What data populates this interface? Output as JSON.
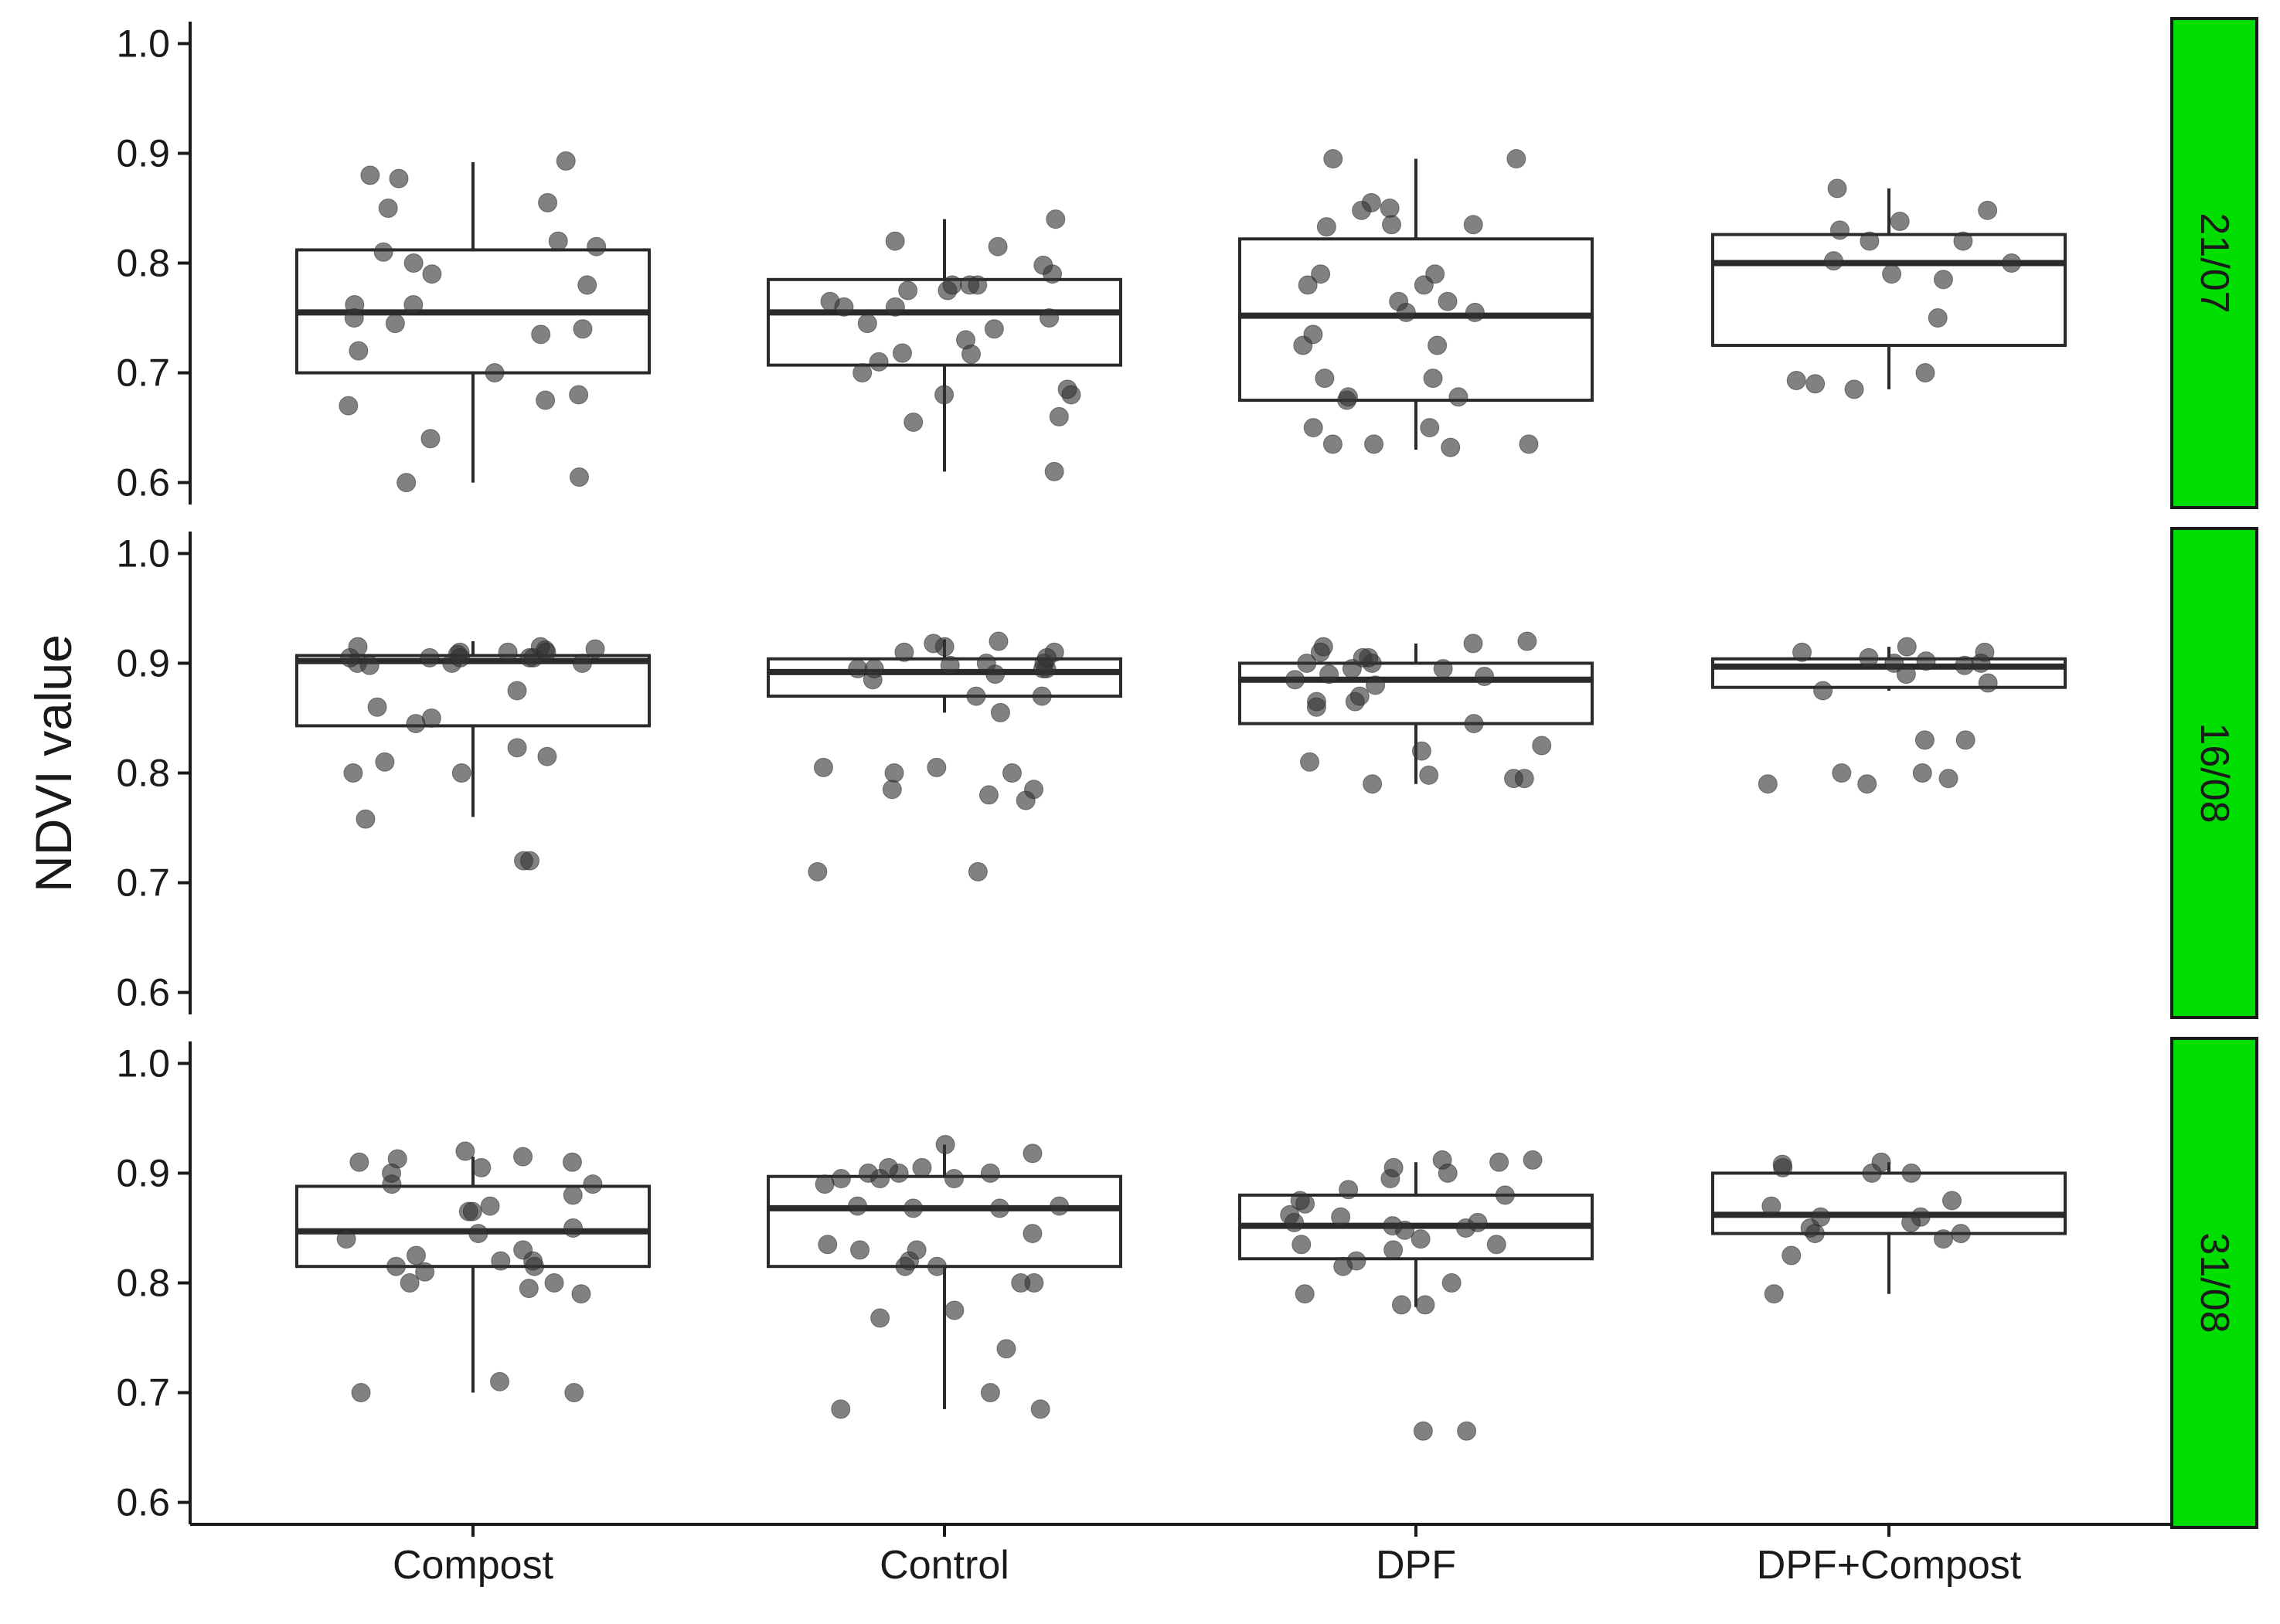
{
  "chart_data": {
    "type": "boxplot",
    "ylabel": "NDVI value",
    "xlabel": "",
    "categories": [
      "Compost",
      "Control",
      "DPF",
      "DPF+Compost"
    ],
    "ylim": [
      0.58,
      1.02
    ],
    "yticks": [
      0.6,
      0.7,
      0.8,
      0.9,
      1.0
    ],
    "ytick_labels": [
      "0.6",
      "0.7",
      "0.8",
      "0.9",
      "1.0"
    ],
    "grid": false,
    "facet_strip_color": "#00dd00",
    "point_color": "#333333",
    "box_fill": "#ffffff",
    "panels": [
      {
        "label": "21/07",
        "boxes": [
          {
            "category": "Compost",
            "whisker_low": 0.6,
            "q1": 0.7,
            "median": 0.755,
            "q3": 0.812,
            "whisker_high": 0.892,
            "points": [
              0.88,
              0.82,
              0.78,
              0.762,
              0.67,
              0.72,
              0.735,
              0.7,
              0.68,
              0.675,
              0.64,
              0.745,
              0.8,
              0.855,
              0.815,
              0.81,
              0.79,
              0.75,
              0.762,
              0.85,
              0.893,
              0.877,
              0.605,
              0.6,
              0.74
            ]
          },
          {
            "category": "Control",
            "whisker_low": 0.61,
            "q1": 0.707,
            "median": 0.755,
            "q3": 0.785,
            "whisker_high": 0.84,
            "points": [
              0.84,
              0.82,
              0.78,
              0.775,
              0.745,
              0.75,
              0.718,
              0.685,
              0.66,
              0.61,
              0.765,
              0.79,
              0.798,
              0.775,
              0.76,
              0.74,
              0.73,
              0.71,
              0.7,
              0.68,
              0.76,
              0.78,
              0.815,
              0.717,
              0.68,
              0.655,
              0.78
            ]
          },
          {
            "category": "DPF",
            "whisker_low": 0.63,
            "q1": 0.675,
            "median": 0.752,
            "q3": 0.822,
            "whisker_high": 0.895,
            "points": [
              0.855,
              0.835,
              0.79,
              0.78,
              0.725,
              0.695,
              0.635,
              0.678,
              0.635,
              0.635,
              0.765,
              0.755,
              0.735,
              0.695,
              0.65,
              0.65,
              0.833,
              0.765,
              0.675,
              0.678,
              0.79,
              0.78,
              0.755,
              0.725,
              0.85,
              0.848,
              0.895,
              0.895,
              0.835,
              0.632
            ]
          },
          {
            "category": "DPF+Compost",
            "whisker_low": 0.685,
            "q1": 0.725,
            "median": 0.8,
            "q3": 0.826,
            "whisker_high": 0.868,
            "points": [
              0.848,
              0.8,
              0.79,
              0.785,
              0.75,
              0.69,
              0.83,
              0.82,
              0.82,
              0.838,
              0.802,
              0.685,
              0.868,
              0.7,
              0.693
            ]
          }
        ]
      },
      {
        "label": "16/08",
        "boxes": [
          {
            "category": "Compost",
            "whisker_low": 0.76,
            "q1": 0.843,
            "median": 0.902,
            "q3": 0.907,
            "whisker_high": 0.92,
            "points": [
              0.91,
              0.905,
              0.9,
              0.905,
              0.908,
              0.91,
              0.8,
              0.823,
              0.758,
              0.72,
              0.915,
              0.912,
              0.905,
              0.9,
              0.875,
              0.85,
              0.81,
              0.915,
              0.913,
              0.905,
              0.9,
              0.898,
              0.86,
              0.845,
              0.815,
              0.8,
              0.905,
              0.91,
              0.72
            ]
          },
          {
            "category": "Control",
            "whisker_low": 0.855,
            "q1": 0.87,
            "median": 0.892,
            "q3": 0.904,
            "whisker_high": 0.922,
            "points": [
              0.91,
              0.89,
              0.895,
              0.805,
              0.895,
              0.9,
              0.895,
              0.885,
              0.87,
              0.805,
              0.8,
              0.785,
              0.775,
              0.71,
              0.9,
              0.898,
              0.87,
              0.91,
              0.905,
              0.895,
              0.8,
              0.78,
              0.915,
              0.92,
              0.918,
              0.855,
              0.785,
              0.71
            ]
          },
          {
            "category": "DPF",
            "whisker_low": 0.79,
            "q1": 0.845,
            "median": 0.885,
            "q3": 0.9,
            "whisker_high": 0.918,
            "points": [
              0.915,
              0.9,
              0.865,
              0.845,
              0.9,
              0.92,
              0.895,
              0.798,
              0.81,
              0.91,
              0.905,
              0.89,
              0.865,
              0.895,
              0.918,
              0.905,
              0.82,
              0.79,
              0.795,
              0.88,
              0.87,
              0.86,
              0.825,
              0.795,
              0.885,
              0.888
            ]
          },
          {
            "category": "DPF+Compost",
            "whisker_low": 0.875,
            "q1": 0.878,
            "median": 0.897,
            "q3": 0.904,
            "whisker_high": 0.915,
            "points": [
              0.91,
              0.902,
              0.905,
              0.9,
              0.915,
              0.875,
              0.89,
              0.83,
              0.83,
              0.8,
              0.795,
              0.79,
              0.9,
              0.898,
              0.882,
              0.79,
              0.8,
              0.91
            ]
          }
        ]
      },
      {
        "label": "31/08",
        "boxes": [
          {
            "category": "Compost",
            "whisker_low": 0.7,
            "q1": 0.815,
            "median": 0.847,
            "q3": 0.888,
            "whisker_high": 0.915,
            "points": [
              0.905,
              0.91,
              0.92,
              0.815,
              0.81,
              0.8,
              0.79,
              0.82,
              0.845,
              0.83,
              0.88,
              0.89,
              0.87,
              0.913,
              0.825,
              0.82,
              0.7,
              0.71,
              0.85,
              0.9,
              0.865,
              0.915,
              0.91,
              0.89,
              0.795,
              0.8,
              0.815,
              0.84,
              0.865,
              0.7
            ]
          },
          {
            "category": "Control",
            "whisker_low": 0.685,
            "q1": 0.815,
            "median": 0.868,
            "q3": 0.897,
            "whisker_high": 0.926,
            "points": [
              0.926,
              0.918,
              0.9,
              0.905,
              0.835,
              0.82,
              0.775,
              0.7,
              0.74,
              0.87,
              0.868,
              0.815,
              0.83,
              0.905,
              0.9,
              0.685,
              0.685,
              0.9,
              0.895,
              0.895,
              0.868,
              0.845,
              0.815,
              0.8,
              0.89,
              0.87,
              0.768,
              0.8,
              0.83,
              0.895
            ]
          },
          {
            "category": "DPF",
            "whisker_low": 0.778,
            "q1": 0.822,
            "median": 0.852,
            "q3": 0.88,
            "whisker_high": 0.91,
            "points": [
              0.912,
              0.912,
              0.9,
              0.895,
              0.86,
              0.835,
              0.8,
              0.79,
              0.862,
              0.885,
              0.85,
              0.855,
              0.83,
              0.78,
              0.855,
              0.848,
              0.91,
              0.905,
              0.852,
              0.835,
              0.82,
              0.815,
              0.665,
              0.665,
              0.872,
              0.875,
              0.88,
              0.84,
              0.78
            ]
          },
          {
            "category": "DPF+Compost",
            "whisker_low": 0.79,
            "q1": 0.845,
            "median": 0.862,
            "q3": 0.9,
            "whisker_high": 0.91,
            "points": [
              0.905,
              0.91,
              0.9,
              0.87,
              0.85,
              0.908,
              0.875,
              0.845,
              0.84,
              0.86,
              0.855,
              0.845,
              0.9,
              0.825,
              0.79,
              0.86
            ]
          }
        ]
      }
    ]
  }
}
